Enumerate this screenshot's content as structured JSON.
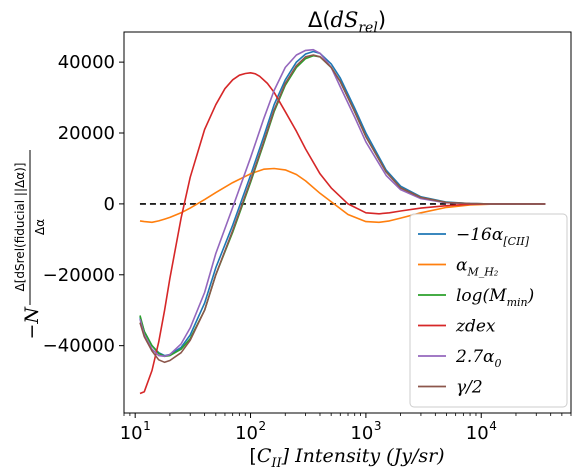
{
  "chart_data": {
    "type": "line",
    "title": "Δ(dS_rel)",
    "title_parts": {
      "pre": "Δ(",
      "main": "dS",
      "sub": "rel",
      "post": ")"
    },
    "xlabel": "[C_II] Intensity (Jy/sr)",
    "xlabel_parts": {
      "pre": "[",
      "main": "C",
      "sub": "II",
      "post": "] Intensity (Jy/sr)"
    },
    "ylabel": "−N Δ[dS_rel(fiducial||Δα)] / Δα",
    "ylabel_parts": {
      "sign": "−N",
      "numerator": "Δ[dSrel(fiducial ||Δα)]",
      "denominator": "Δα"
    },
    "x_scale": "log",
    "xlim": [
      8,
      60000
    ],
    "ylim": [
      -59000,
      48500
    ],
    "x_ticks": [
      {
        "value": 10,
        "label": "10",
        "exp": "1"
      },
      {
        "value": 100,
        "label": "10",
        "exp": "2"
      },
      {
        "value": 1000,
        "label": "10",
        "exp": "3"
      },
      {
        "value": 10000,
        "label": "10",
        "exp": "4"
      }
    ],
    "y_ticks": [
      {
        "value": 40000,
        "label": "40000"
      },
      {
        "value": 20000,
        "label": "20000"
      },
      {
        "value": 0,
        "label": "0"
      },
      {
        "value": -20000,
        "label": "−20000"
      },
      {
        "value": -40000,
        "label": "−40000"
      }
    ],
    "reference_line": {
      "y": 0,
      "x_range": [
        11,
        36000
      ],
      "color": "#000000",
      "style": "dashed"
    },
    "legend_position": "lower-right",
    "series": [
      {
        "name": "−16α_[CII]",
        "legend": {
          "main": "−16α",
          "sub": "[CII]"
        },
        "color": "#1f77b4",
        "x": [
          11,
          12,
          14,
          16,
          18,
          20,
          25,
          30,
          40,
          50,
          70,
          100,
          130,
          160,
          200,
          250,
          300,
          350,
          400,
          500,
          600,
          800,
          1000,
          1500,
          2000,
          3000,
          5000,
          8000,
          12000,
          20000,
          36000
        ],
        "y": [
          -32000,
          -36000,
          -40000,
          -42000,
          -42800,
          -42500,
          -40500,
          -37000,
          -28000,
          -18000,
          -6000,
          8000,
          19000,
          28000,
          35000,
          40000,
          42300,
          43000,
          42500,
          39500,
          35500,
          27000,
          20000,
          9500,
          5000,
          2000,
          500,
          100,
          0,
          0,
          0
        ]
      },
      {
        "name": "α_M_H2",
        "legend": {
          "main": "α",
          "sub": "M_H₂"
        },
        "color": "#ff7f0e",
        "x": [
          11,
          12,
          14,
          16,
          18,
          20,
          25,
          30,
          40,
          50,
          70,
          100,
          130,
          160,
          200,
          250,
          300,
          400,
          500,
          700,
          1000,
          1300,
          1600,
          2000,
          3000,
          5000,
          8000,
          12000,
          20000,
          36000
        ],
        "y": [
          -4800,
          -5000,
          -5200,
          -4800,
          -4300,
          -3800,
          -2500,
          -1200,
          1200,
          3200,
          6000,
          8500,
          9800,
          10000,
          9600,
          8300,
          6500,
          3000,
          600,
          -3000,
          -5000,
          -5200,
          -4800,
          -4000,
          -2500,
          -1000,
          -300,
          -100,
          0,
          0
        ]
      },
      {
        "name": "log(M_min)",
        "legend": {
          "main": "log(M",
          "sub": "min",
          "post": ")"
        },
        "color": "#2ca02c",
        "x": [
          11,
          12,
          14,
          16,
          18,
          20,
          25,
          30,
          40,
          50,
          70,
          100,
          130,
          160,
          200,
          250,
          300,
          350,
          400,
          500,
          600,
          800,
          1000,
          1500,
          2000,
          3000,
          5000,
          8000,
          12000,
          20000,
          36000
        ],
        "y": [
          -31500,
          -36000,
          -40000,
          -42200,
          -43000,
          -42800,
          -41000,
          -38000,
          -30000,
          -20000,
          -8000,
          6000,
          17000,
          26000,
          33500,
          38500,
          41000,
          41800,
          41500,
          38500,
          34500,
          26000,
          19000,
          9000,
          4500,
          1800,
          400,
          100,
          0,
          0,
          0
        ]
      },
      {
        "name": "zdex",
        "legend": {
          "main": "zdex"
        },
        "color": "#d62728",
        "x": [
          11,
          12,
          14,
          16,
          18,
          20,
          25,
          30,
          40,
          50,
          60,
          70,
          80,
          90,
          100,
          110,
          120,
          140,
          160,
          200,
          250,
          300,
          400,
          500,
          700,
          1000,
          1300,
          1600,
          2000,
          3000,
          5000,
          8000,
          12000,
          20000,
          36000
        ],
        "y": [
          -53500,
          -53000,
          -47000,
          -39000,
          -30000,
          -21000,
          -4000,
          7500,
          21000,
          28000,
          32500,
          35000,
          36300,
          36800,
          37000,
          36700,
          36000,
          34000,
          31500,
          26000,
          20500,
          15500,
          8500,
          4500,
          0,
          -2500,
          -2800,
          -2500,
          -2000,
          -1200,
          -500,
          -100,
          0,
          0,
          0
        ]
      },
      {
        "name": "2.7α_0",
        "legend": {
          "main": "2.7α",
          "sub": "0"
        },
        "color": "#9467bd",
        "x": [
          11,
          12,
          14,
          16,
          18,
          20,
          25,
          30,
          40,
          50,
          70,
          100,
          130,
          160,
          200,
          250,
          300,
          350,
          400,
          500,
          600,
          800,
          1000,
          1500,
          2000,
          3000,
          5000,
          8000,
          12000,
          20000,
          36000
        ],
        "y": [
          -32500,
          -37000,
          -41000,
          -42800,
          -43000,
          -42500,
          -39500,
          -35000,
          -25000,
          -14000,
          -1000,
          13000,
          24000,
          32000,
          38500,
          42000,
          43300,
          43500,
          42500,
          38500,
          33000,
          24500,
          17500,
          8000,
          4000,
          1500,
          300,
          100,
          0,
          0,
          0
        ]
      },
      {
        "name": "γ/2",
        "legend": {
          "main": "γ/2"
        },
        "color": "#8c564b",
        "x": [
          11,
          12,
          14,
          16,
          18,
          20,
          25,
          30,
          40,
          50,
          70,
          100,
          130,
          160,
          200,
          250,
          300,
          350,
          400,
          500,
          600,
          800,
          1000,
          1500,
          2000,
          3000,
          5000,
          8000,
          12000,
          20000,
          36000
        ],
        "y": [
          -33500,
          -37500,
          -41500,
          -44000,
          -44700,
          -44200,
          -42000,
          -38500,
          -30000,
          -20000,
          -7500,
          6500,
          17500,
          26500,
          34000,
          39000,
          41500,
          42000,
          41500,
          38500,
          34500,
          26000,
          19000,
          9000,
          4500,
          1800,
          400,
          100,
          0,
          0,
          0
        ]
      }
    ]
  }
}
